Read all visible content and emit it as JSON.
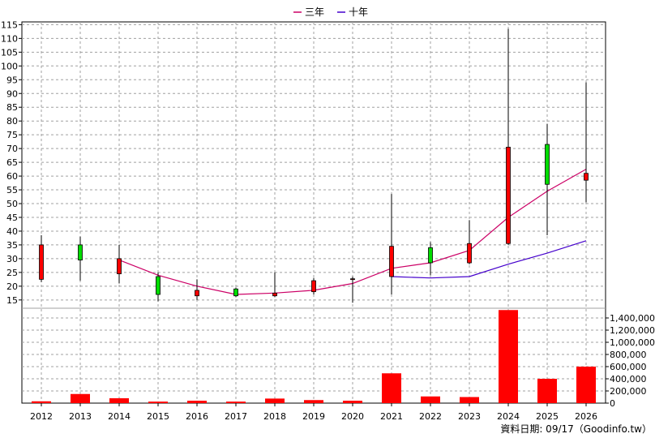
{
  "chart_data": {
    "type": "candlestick",
    "categories": [
      "2012",
      "2013",
      "2014",
      "2015",
      "2016",
      "2017",
      "2018",
      "2019",
      "2020",
      "2021",
      "2022",
      "2023",
      "2024",
      "2025",
      "2026"
    ],
    "price_axis": {
      "ylim": [
        12,
        116
      ],
      "ticks": [
        15,
        20,
        25,
        30,
        35,
        40,
        45,
        50,
        55,
        60,
        65,
        70,
        75,
        80,
        85,
        90,
        95,
        100,
        105,
        110,
        115
      ]
    },
    "volume_axis": {
      "ylim": [
        0,
        1560000
      ],
      "ticks": [
        0,
        200000,
        400000,
        600000,
        800000,
        1000000,
        1200000,
        1400000
      ],
      "tick_labels": [
        "0",
        "200,000",
        "400,000",
        "600,000",
        "800,000",
        "1,000,000",
        "1,200,000",
        "1,400,000"
      ]
    },
    "candles": [
      {
        "year": "2012",
        "open": 22.5,
        "close": 35,
        "high": 38.5,
        "low": 21.5
      },
      {
        "year": "2013",
        "open": 35,
        "close": 29.5,
        "high": 38,
        "low": 22
      },
      {
        "year": "2014",
        "open": 24.5,
        "close": 30,
        "high": 35,
        "low": 21
      },
      {
        "year": "2015",
        "open": 23.5,
        "close": 17,
        "high": 25,
        "low": 14.5
      },
      {
        "year": "2016",
        "open": 16.5,
        "close": 18.5,
        "high": 22.5,
        "low": 15
      },
      {
        "year": "2017",
        "open": 19,
        "close": 16.5,
        "high": 19.5,
        "low": 16
      },
      {
        "year": "2018",
        "open": 16.5,
        "close": 17.5,
        "high": 25,
        "low": 16
      },
      {
        "year": "2019",
        "open": 18,
        "close": 22,
        "high": 23,
        "low": 17
      },
      {
        "year": "2020",
        "open": 22.5,
        "close": 22.7,
        "high": 23.5,
        "low": 14
      },
      {
        "year": "2021",
        "open": 23.5,
        "close": 34.5,
        "high": 53.5,
        "low": 17
      },
      {
        "year": "2022",
        "open": 34,
        "close": 28.5,
        "high": 36,
        "low": 24
      },
      {
        "year": "2023",
        "open": 28.5,
        "close": 35.5,
        "high": 44,
        "low": 28
      },
      {
        "year": "2024",
        "open": 35.5,
        "close": 70.5,
        "high": 113.5,
        "low": 35
      },
      {
        "year": "2025",
        "open": 71.5,
        "close": 57,
        "high": 79,
        "low": 38.5
      },
      {
        "year": "2026",
        "open": 58.5,
        "close": 61,
        "high": 94,
        "low": 50.5
      }
    ],
    "volume": [
      30000,
      150000,
      80000,
      25000,
      40000,
      25000,
      75000,
      50000,
      40000,
      490000,
      110000,
      100000,
      1530000,
      400000,
      600000
    ],
    "series": [
      {
        "name": "三年",
        "color": "#cc0066",
        "values": [
          null,
          null,
          29.5,
          24,
          20,
          17,
          17.5,
          18.5,
          21,
          26.5,
          28.5,
          33,
          45,
          54.5,
          62.5
        ]
      },
      {
        "name": "十年",
        "color": "#4400cc",
        "values": [
          null,
          null,
          null,
          null,
          null,
          null,
          null,
          null,
          null,
          23.5,
          23,
          23.5,
          28,
          32,
          36.5
        ]
      }
    ],
    "colors": {
      "up": "#ff0000",
      "down": "#00dd00",
      "volume": "#ff0000",
      "grid": "#a0a0a0"
    },
    "grid": true,
    "legend_position": "top-center",
    "footer": "資料日期: 09/17（Goodinfo.tw）"
  }
}
